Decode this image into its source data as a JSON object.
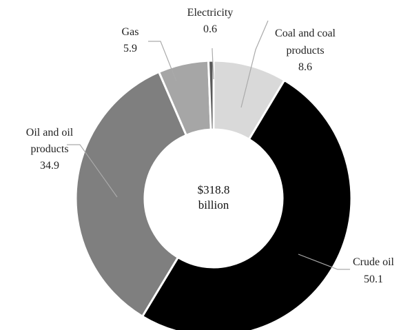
{
  "chart_data": {
    "type": "pie",
    "variant": "donut",
    "center_label": [
      "$318.8",
      "billion"
    ],
    "slices": [
      {
        "label": [
          "Coal and coal",
          "products"
        ],
        "value": 8.6,
        "value_label": "8.6",
        "color": "#d9d9d9"
      },
      {
        "label": [
          "Crude oil"
        ],
        "value": 50.1,
        "value_label": "50.1",
        "color": "#000000"
      },
      {
        "label": [
          "Oil and oil",
          "products"
        ],
        "value": 34.9,
        "value_label": "34.9",
        "color": "#7f7f7f"
      },
      {
        "label": [
          "Gas"
        ],
        "value": 5.9,
        "value_label": "5.9",
        "color": "#a6a6a6"
      },
      {
        "label": [
          "Electricity"
        ],
        "value": 0.6,
        "value_label": "0.6",
        "color": "#595959"
      }
    ]
  }
}
